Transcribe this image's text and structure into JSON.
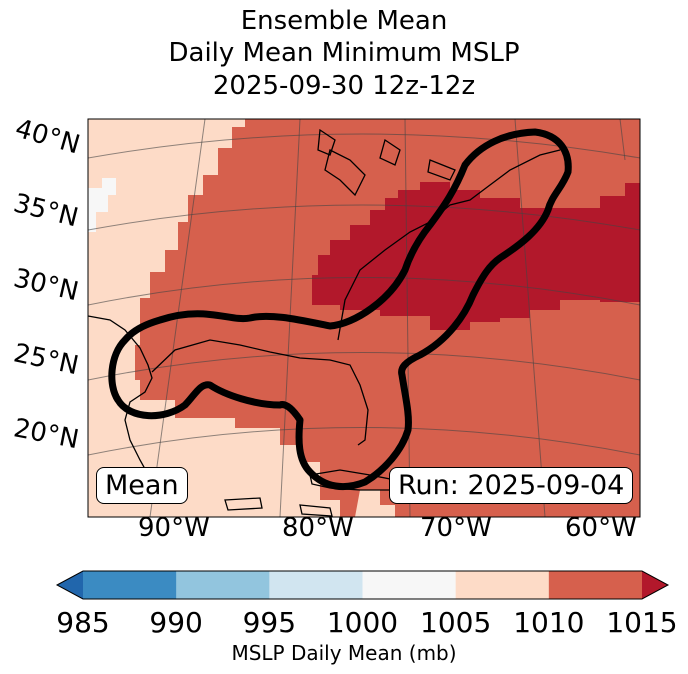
{
  "title": {
    "line1": "Ensemble Mean",
    "line2": "Daily Mean Minimum MSLP",
    "line3": "2025-09-30 12z-12z"
  },
  "map": {
    "lat_labels": [
      "40°N",
      "35°N",
      "30°N",
      "25°N",
      "20°N"
    ],
    "lon_labels": [
      "90°W",
      "80°W",
      "70°W",
      "60°W"
    ],
    "mean_label": "Mean",
    "run_label": "Run: 2025-09-04"
  },
  "colorbar": {
    "ticks": [
      "985",
      "990",
      "995",
      "1000",
      "1005",
      "1010",
      "1015"
    ],
    "label": "MSLP Daily Mean (mb)",
    "bins": [
      {
        "range": "985-990",
        "color": "#3b8bc2"
      },
      {
        "range": "990-995",
        "color": "#92c5de"
      },
      {
        "range": "995-1000",
        "color": "#d1e5f0"
      },
      {
        "range": "1000-1005",
        "color": "#f7f7f7"
      },
      {
        "range": "1005-1010",
        "color": "#fddbc7"
      },
      {
        "range": "1010-1015",
        "color": "#d6604d"
      }
    ],
    "under_color": "#2166ac",
    "over_color": "#b2182b"
  }
}
